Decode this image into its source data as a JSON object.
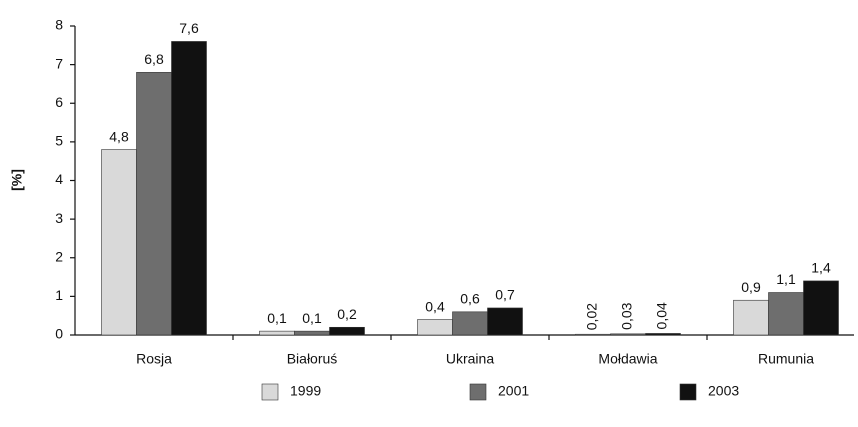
{
  "chart_data": {
    "type": "bar",
    "y_label": "[%]",
    "categories": [
      "Rosja",
      "Białoruś",
      "Ukraina",
      "Mołdawia",
      "Rumunia"
    ],
    "series": [
      {
        "name": "1999",
        "color": "#d9d9d9",
        "values": [
          4.8,
          0.1,
          0.4,
          0.02,
          0.9
        ],
        "value_labels": [
          "4,8",
          "0,1",
          "0,4",
          "0,02",
          "0,9"
        ]
      },
      {
        "name": "2001",
        "color": "#6e6e6e",
        "values": [
          6.8,
          0.1,
          0.6,
          0.03,
          1.1
        ],
        "value_labels": [
          "6,8",
          "0,1",
          "0,6",
          "0,03",
          "1,1"
        ]
      },
      {
        "name": "2003",
        "color": "#111111",
        "values": [
          7.6,
          0.2,
          0.7,
          0.04,
          1.4
        ],
        "value_labels": [
          "7,6",
          "0,2",
          "0,7",
          "0,04",
          "1,4"
        ]
      }
    ],
    "ylim": [
      0,
      8
    ],
    "yticks": [
      0,
      1,
      2,
      3,
      4,
      5,
      6,
      7,
      8
    ],
    "grid": false,
    "legend": "bottom"
  }
}
